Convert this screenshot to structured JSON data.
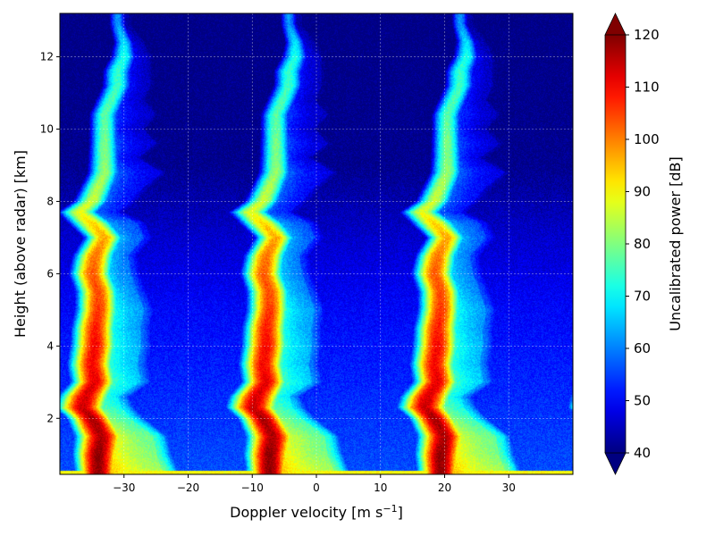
{
  "chart_data": {
    "type": "heatmap",
    "title": "",
    "xlabel_main": "Doppler velocity [m s",
    "xlabel_sup": "−1",
    "xlabel_close": "]",
    "ylabel": "Height (above radar) [km]",
    "xlim": [
      -40,
      40
    ],
    "ylim": [
      0.45,
      13.2
    ],
    "xticks": [
      -30,
      -20,
      -10,
      0,
      10,
      20,
      30
    ],
    "xtick_labels": [
      "−30",
      "−20",
      "−10",
      "0",
      "10",
      "20",
      "30"
    ],
    "yticks": [
      2,
      4,
      6,
      8,
      10,
      12
    ],
    "ytick_labels": [
      "2",
      "4",
      "6",
      "8",
      "10",
      "12"
    ],
    "grid": true,
    "colormap": "jet",
    "colorbar": {
      "label": "Uncalibrated power [dB]",
      "min": 40,
      "max": 120,
      "extend": "both",
      "ticks": [
        40,
        50,
        60,
        70,
        80,
        90,
        100,
        110,
        120
      ],
      "tick_labels": [
        "40",
        "50",
        "60",
        "70",
        "80",
        "90",
        "100",
        "110",
        "120"
      ]
    },
    "aliasing_period_ms": 26.7,
    "profile": {
      "height_km": [
        0.5,
        1.0,
        1.5,
        2.0,
        2.3,
        2.6,
        3.0,
        3.5,
        4.0,
        4.5,
        5.0,
        5.5,
        6.0,
        6.5,
        7.0,
        7.4,
        7.7,
        8.0,
        8.4,
        8.8,
        9.2,
        9.6,
        10.0,
        10.4,
        10.8,
        11.2,
        11.6,
        12.0,
        12.4,
        12.9
      ],
      "peak_velocity_ms": [
        -34,
        -34,
        -33.5,
        -35,
        -36.5,
        -36,
        -34.5,
        -35,
        -34.5,
        -34.5,
        -34,
        -34,
        -35,
        -34.5,
        -33,
        -35,
        -37,
        -35,
        -34,
        -33,
        -33,
        -33,
        -33,
        -33,
        -32,
        -31,
        -31,
        -30,
        -30,
        -31
      ],
      "core_half_width_ms": [
        3.0,
        3.3,
        3.5,
        3.2,
        3.6,
        3.6,
        3.2,
        3.2,
        3.2,
        3.1,
        3.0,
        3.0,
        3.0,
        2.9,
        2.8,
        3.2,
        3.0,
        2.6,
        2.5,
        2.4,
        2.3,
        2.2,
        2.2,
        2.2,
        2.2,
        2.2,
        2.2,
        2.0,
        1.6,
        1.4
      ],
      "tail_extent_ms": [
        10,
        9,
        8,
        6,
        6,
        5,
        7,
        7,
        7,
        7,
        7,
        6,
        6,
        5,
        6,
        7,
        6,
        6,
        7,
        9,
        5,
        8,
        6,
        8,
        5,
        5,
        5,
        4,
        3,
        2
      ],
      "peak_power_db": [
        119,
        119,
        116,
        117,
        114,
        113,
        112,
        110,
        110,
        108,
        106,
        104,
        103,
        101,
        97,
        93,
        88,
        86,
        84,
        82,
        80,
        80,
        78,
        77,
        76,
        75,
        74,
        72,
        68,
        62
      ],
      "shoulder_power_db": [
        80,
        76,
        74,
        70,
        68,
        64,
        62,
        60,
        60,
        58,
        58,
        56,
        55,
        55,
        53,
        52,
        48,
        47,
        46,
        44,
        44,
        43,
        42,
        42,
        42,
        42,
        42,
        42,
        41,
        40
      ]
    },
    "noise_floor_db": [
      {
        "height_km": 0.5,
        "db": 56
      },
      {
        "height_km": 2.0,
        "db": 54
      },
      {
        "height_km": 5.0,
        "db": 50
      },
      {
        "height_km": 7.0,
        "db": 46
      },
      {
        "height_km": 9.0,
        "db": 41
      },
      {
        "height_km": 13.2,
        "db": 40
      }
    ],
    "surface_band": {
      "height_km_max": 0.55,
      "db": 90
    }
  }
}
